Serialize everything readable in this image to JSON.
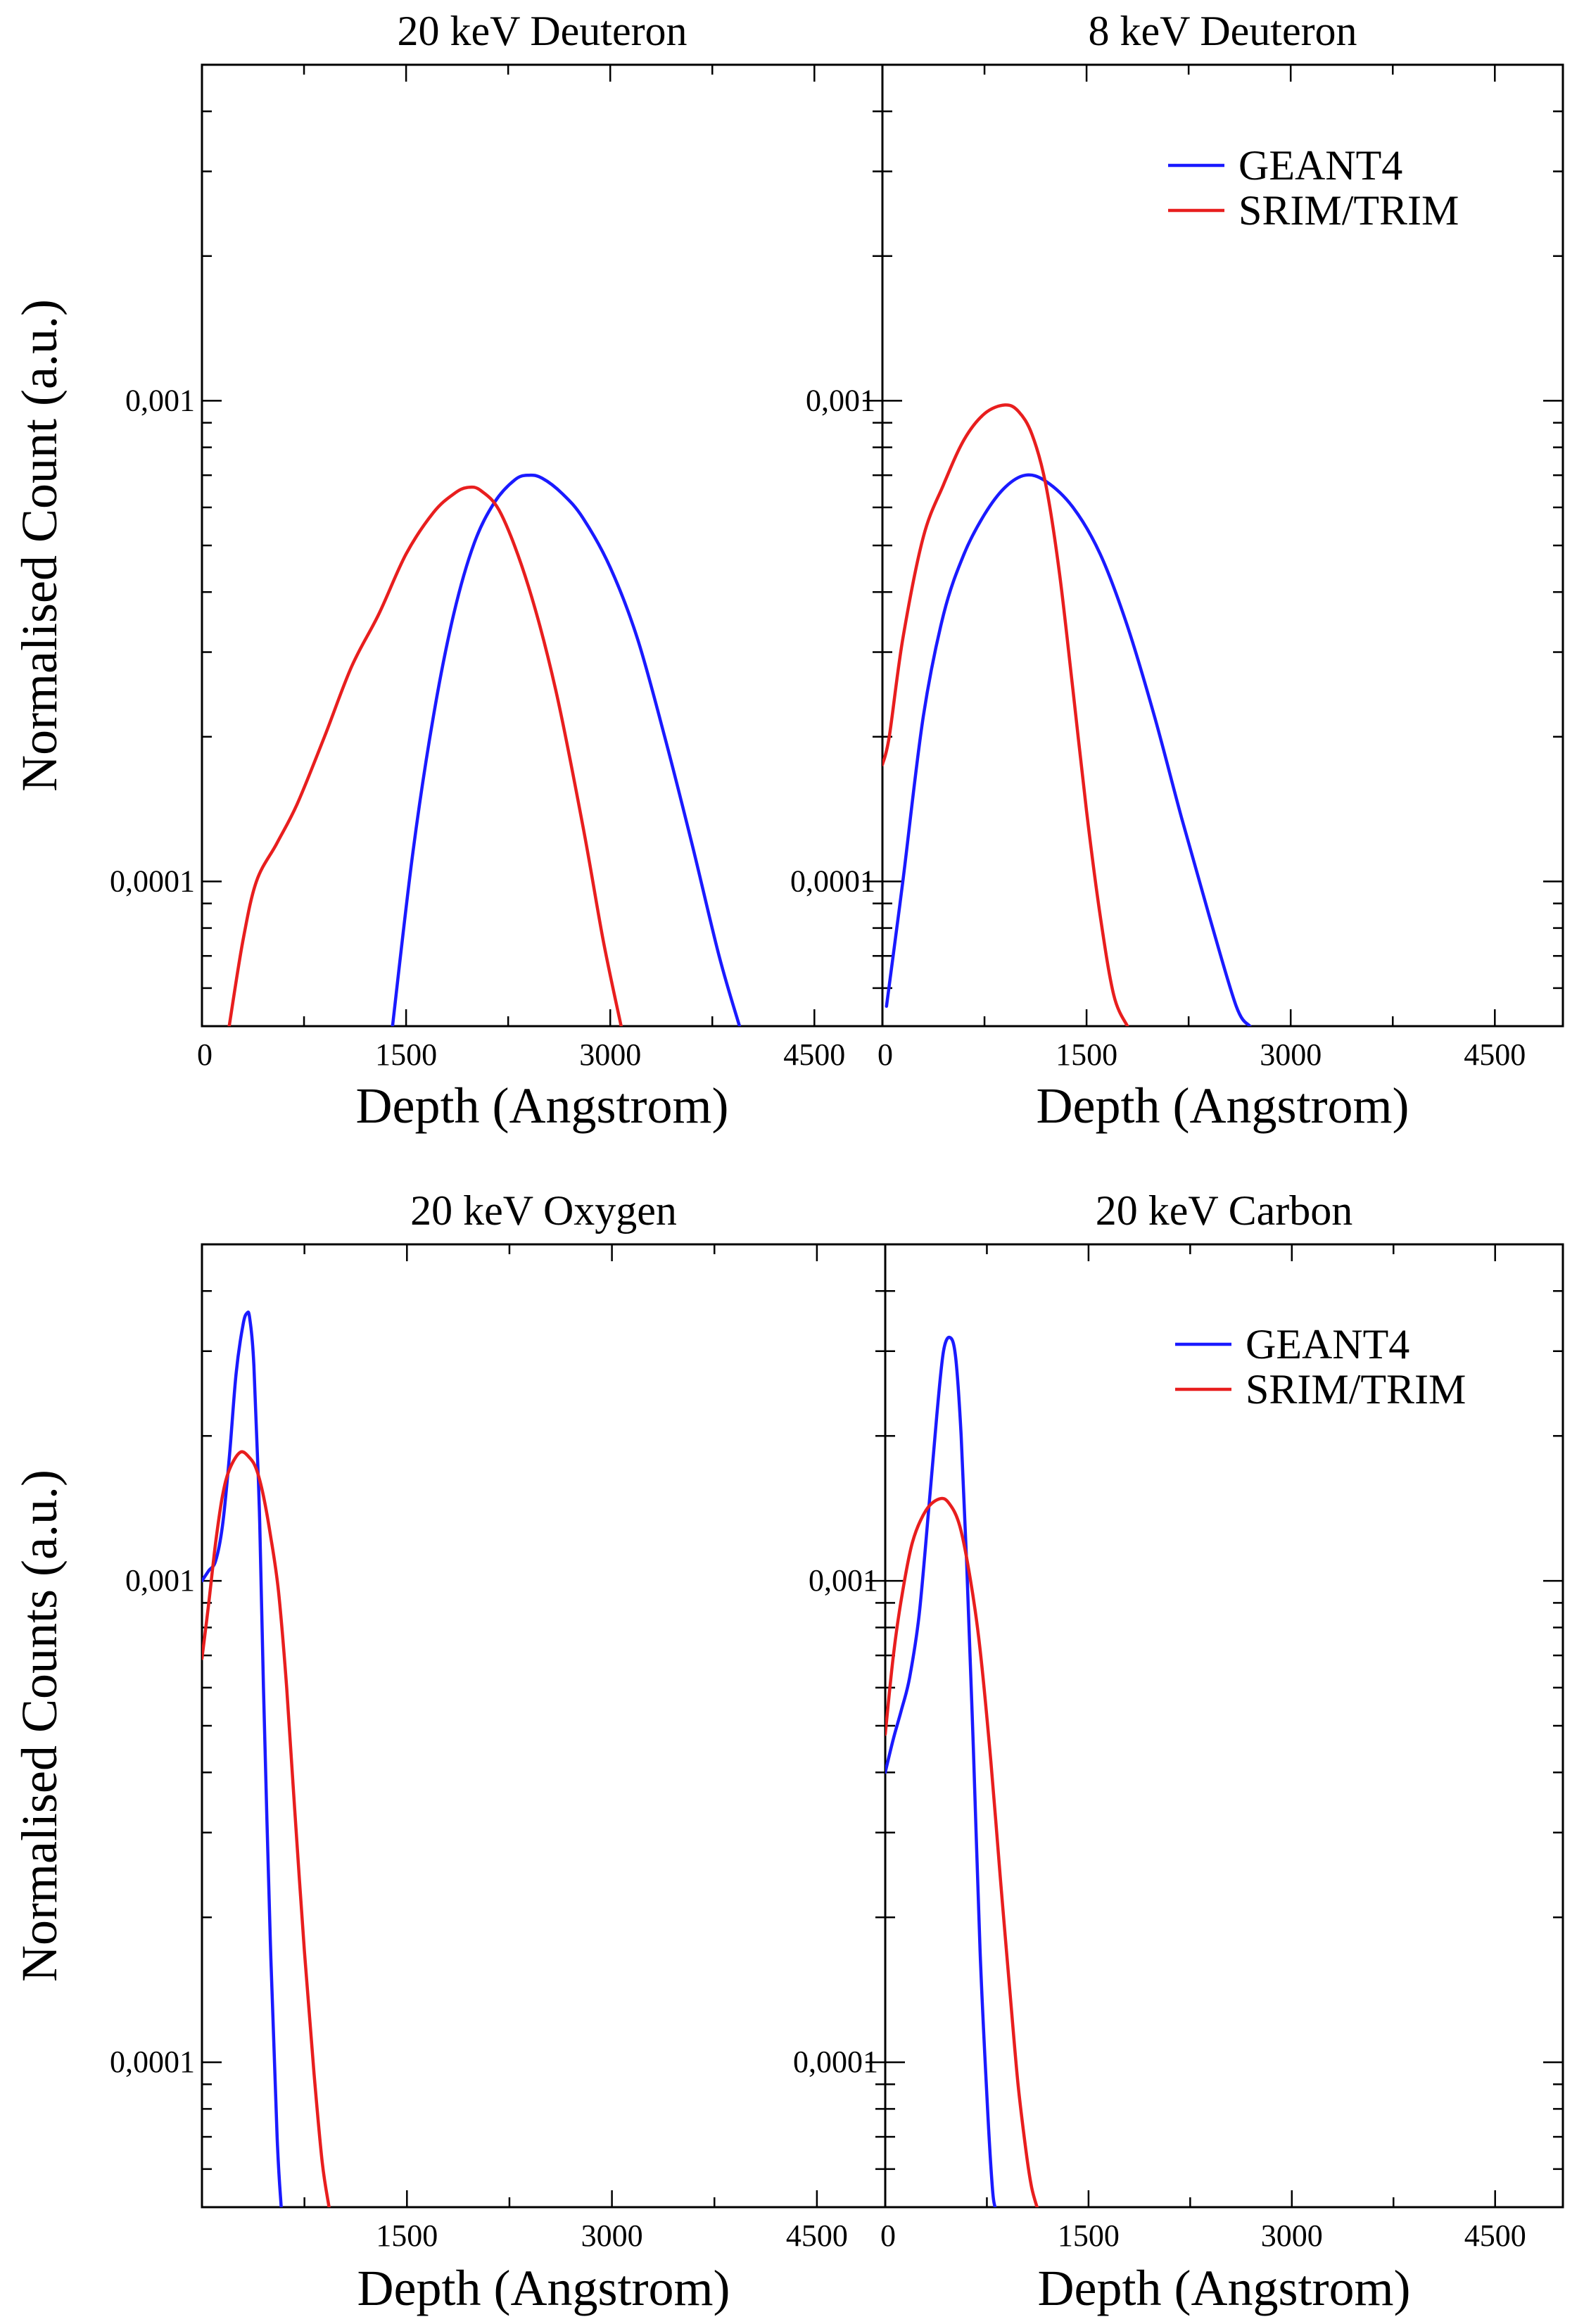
{
  "colors": {
    "geant4": "#1a1aff",
    "srim": "#e81e1e"
  },
  "chart_data": [
    {
      "type": "line",
      "title": "20 keV Deuteron",
      "xlabel": "Depth (Angstrom)",
      "ylabel": "Normalised Count (a.u.)",
      "xlim": [
        0,
        5000
      ],
      "ylim": [
        5e-05,
        0.005
      ],
      "yscale": "log",
      "xticks": [
        "0",
        "1500",
        "3000",
        "4500"
      ],
      "yticks": [
        "0,0001",
        "0,001"
      ],
      "legend": [],
      "series": [
        {
          "name": "GEANT4",
          "color_key": "geant4",
          "x": [
            1400,
            1550,
            1700,
            1850,
            2000,
            2150,
            2300,
            2400,
            2500,
            2650,
            2800,
            3000,
            3200,
            3400,
            3600,
            3800,
            3950
          ],
          "y": [
            5e-05,
            0.000115,
            0.00022,
            0.00036,
            0.000505,
            0.000615,
            0.000685,
            0.0007,
            0.00069,
            0.00064,
            0.00057,
            0.00045,
            0.00032,
            0.0002,
            0.00012,
            7e-05,
            5e-05
          ]
        },
        {
          "name": "SRIM/TRIM",
          "color_key": "srim",
          "x": [
            200,
            300,
            400,
            550,
            700,
            900,
            1100,
            1300,
            1500,
            1700,
            1850,
            1950,
            2050,
            2200,
            2400,
            2600,
            2800,
            2950,
            3080
          ],
          "y": [
            5e-05,
            7.5e-05,
            0.0001,
            0.00012,
            0.000145,
            0.0002,
            0.00028,
            0.00036,
            0.00048,
            0.000585,
            0.00064,
            0.00066,
            0.00065,
            0.00058,
            0.00041,
            0.00025,
            0.00013,
            7.5e-05,
            5e-05
          ]
        }
      ]
    },
    {
      "type": "line",
      "title": "8 keV Deuteron",
      "xlabel": "Depth (Angstrom)",
      "ylabel": "",
      "xlim": [
        0,
        5000
      ],
      "ylim": [
        5e-05,
        0.005
      ],
      "yscale": "log",
      "xticks": [
        "0",
        "1500",
        "3000",
        "4500"
      ],
      "yticks": [
        "0,0001",
        "0,001"
      ],
      "legend": [
        "GEANT4",
        "SRIM/TRIM"
      ],
      "series": [
        {
          "name": "GEANT4",
          "color_key": "geant4",
          "x": [
            30,
            150,
            300,
            450,
            600,
            750,
            900,
            1050,
            1200,
            1400,
            1600,
            1800,
            2000,
            2200,
            2400,
            2600,
            2700
          ],
          "y": [
            5.5e-05,
            0.0001,
            0.00022,
            0.00036,
            0.00048,
            0.00058,
            0.00066,
            0.0007,
            0.00068,
            0.0006,
            0.00048,
            0.00034,
            0.00022,
            0.000135,
            8.5e-05,
            5.5e-05,
            5e-05
          ]
        },
        {
          "name": "SRIM/TRIM",
          "color_key": "srim",
          "x": [
            0,
            50,
            150,
            300,
            450,
            600,
            750,
            900,
            1000,
            1100,
            1200,
            1300,
            1400,
            1500,
            1600,
            1700,
            1800
          ],
          "y": [
            0.000175,
            0.0002,
            0.00032,
            0.00052,
            0.00067,
            0.00083,
            0.00094,
            0.00098,
            0.00095,
            0.00085,
            0.00067,
            0.00044,
            0.00025,
            0.00014,
            8.5e-05,
            5.8e-05,
            5e-05
          ]
        }
      ]
    },
    {
      "type": "line",
      "title": "20 keV Oxygen",
      "xlabel": "Depth (Angstrom)",
      "ylabel": "Normalised Counts (a.u.)",
      "xlim": [
        0,
        5000
      ],
      "ylim": [
        5e-05,
        0.005
      ],
      "yscale": "log",
      "xticks": [
        "1500",
        "3000",
        "4500"
      ],
      "yticks": [
        "0,0001",
        "0,001"
      ],
      "legend": [],
      "series": [
        {
          "name": "GEANT4",
          "color_key": "geant4",
          "x": [
            0,
            50,
            100,
            150,
            200,
            250,
            300,
            330,
            350,
            380,
            420,
            450,
            500,
            550,
            580
          ],
          "y": [
            0.001,
            0.00105,
            0.0011,
            0.0013,
            0.0018,
            0.0027,
            0.0034,
            0.0036,
            0.0035,
            0.0028,
            0.0014,
            0.0006,
            0.00018,
            7e-05,
            5e-05
          ]
        },
        {
          "name": "SRIM/TRIM",
          "color_key": "srim",
          "x": [
            0,
            50,
            100,
            150,
            200,
            280,
            350,
            400,
            450,
            500,
            560,
            620,
            680,
            750,
            820,
            880,
            930
          ],
          "y": [
            0.00069,
            0.0009,
            0.0012,
            0.0015,
            0.0017,
            0.00185,
            0.0018,
            0.0017,
            0.0015,
            0.00125,
            0.00095,
            0.0006,
            0.00033,
            0.00017,
            9.5e-05,
            6.2e-05,
            5e-05
          ]
        }
      ]
    },
    {
      "type": "line",
      "title": "20 keV Carbon",
      "xlabel": "Depth (Angstrom)",
      "ylabel": "",
      "xlim": [
        0,
        5000
      ],
      "ylim": [
        5e-05,
        0.005
      ],
      "yscale": "log",
      "xticks": [
        "0",
        "1500",
        "3000",
        "4500"
      ],
      "yticks": [
        "0,0001",
        "0,001"
      ],
      "legend": [
        "GEANT4",
        "SRIM/TRIM"
      ],
      "series": [
        {
          "name": "GEANT4",
          "color_key": "geant4",
          "x": [
            0,
            60,
            120,
            180,
            250,
            320,
            380,
            430,
            480,
            520,
            560,
            600,
            650,
            700,
            750,
            790,
            810
          ],
          "y": [
            0.0004,
            0.00047,
            0.00054,
            0.00063,
            0.00085,
            0.0014,
            0.0022,
            0.003,
            0.0032,
            0.0029,
            0.002,
            0.0011,
            0.00045,
            0.00017,
            8.5e-05,
            5.5e-05,
            5e-05
          ]
        },
        {
          "name": "SRIM/TRIM",
          "color_key": "srim",
          "x": [
            0,
            60,
            120,
            200,
            300,
            400,
            470,
            550,
            630,
            700,
            780,
            850,
            920,
            980,
            1040,
            1080,
            1120
          ],
          "y": [
            0.00048,
            0.0007,
            0.00092,
            0.0012,
            0.0014,
            0.00148,
            0.00145,
            0.0013,
            0.001,
            0.00072,
            0.00042,
            0.00024,
            0.00014,
            9e-05,
            6.5e-05,
            5.5e-05,
            5e-05
          ]
        }
      ]
    }
  ]
}
